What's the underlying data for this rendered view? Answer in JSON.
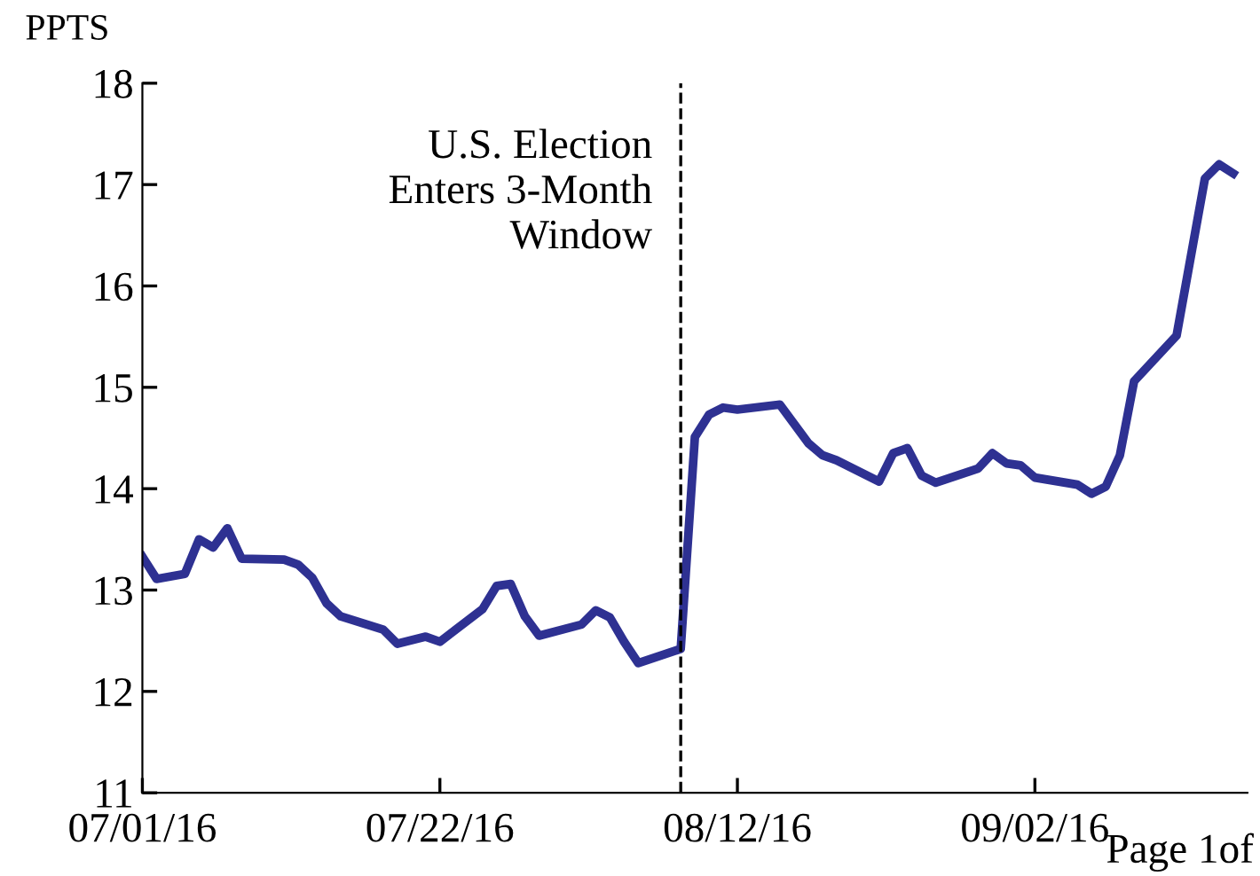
{
  "chart_data": {
    "type": "line",
    "ylabel": "PPTS",
    "x": [
      "2016-07-01",
      "2016-07-02",
      "2016-07-04",
      "2016-07-05",
      "2016-07-06",
      "2016-07-07",
      "2016-07-08",
      "2016-07-11",
      "2016-07-12",
      "2016-07-13",
      "2016-07-14",
      "2016-07-15",
      "2016-07-18",
      "2016-07-19",
      "2016-07-21",
      "2016-07-22",
      "2016-07-25",
      "2016-07-26",
      "2016-07-27",
      "2016-07-28",
      "2016-07-29",
      "2016-08-01",
      "2016-08-02",
      "2016-08-03",
      "2016-08-04",
      "2016-08-05",
      "2016-08-08",
      "2016-08-09",
      "2016-08-10",
      "2016-08-11",
      "2016-08-12",
      "2016-08-15",
      "2016-08-17",
      "2016-08-18",
      "2016-08-19",
      "2016-08-22",
      "2016-08-23",
      "2016-08-24",
      "2016-08-25",
      "2016-08-26",
      "2016-08-29",
      "2016-08-30",
      "2016-08-31",
      "2016-09-01",
      "2016-09-02",
      "2016-09-05",
      "2016-09-06",
      "2016-09-07",
      "2016-09-08",
      "2016-09-09",
      "2016-09-12",
      "2016-09-14",
      "2016-09-15",
      "2016-09-16"
    ],
    "series": [
      {
        "color": "#2e3192",
        "values": [
          13.33,
          13.11,
          13.16,
          13.5,
          13.42,
          13.61,
          13.31,
          13.3,
          13.25,
          13.12,
          12.87,
          12.74,
          12.61,
          12.47,
          12.54,
          12.49,
          12.81,
          13.04,
          13.06,
          12.74,
          12.55,
          12.66,
          12.8,
          12.73,
          12.49,
          12.28,
          12.42,
          14.51,
          14.73,
          14.8,
          14.78,
          14.83,
          14.45,
          14.33,
          14.28,
          14.07,
          14.35,
          14.4,
          14.13,
          14.06,
          14.2,
          14.35,
          14.25,
          14.23,
          14.11,
          14.04,
          13.95,
          14.02,
          14.33,
          15.06,
          15.51,
          17.06,
          17.2,
          17.11
        ]
      }
    ],
    "xlim": [
      "2016-07-01",
      "2016-09-17"
    ],
    "xticks": [
      {
        "value": "2016-07-01",
        "label": "07/01/16"
      },
      {
        "value": "2016-07-22",
        "label": "07/22/16"
      },
      {
        "value": "2016-08-12",
        "label": "08/12/16"
      },
      {
        "value": "2016-09-02",
        "label": "09/02/16"
      }
    ],
    "ylim": [
      11,
      18
    ],
    "yticks": [
      11,
      12,
      13,
      14,
      15,
      16,
      17,
      18
    ],
    "ref_lines": [
      {
        "axis": "x",
        "value": "2016-08-08",
        "label": "U.S. Election\nEnters 3-Month\nWindow",
        "color": "#000000",
        "line_style": "dashed"
      }
    ],
    "annotations": [
      "Page 1of"
    ],
    "grid": false,
    "legend": false,
    "marker": "none",
    "line_style": "solid"
  }
}
